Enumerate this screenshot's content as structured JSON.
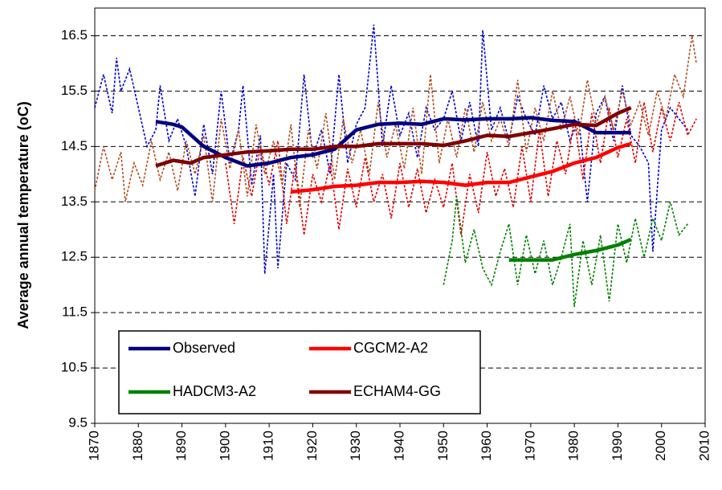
{
  "chart_data": {
    "type": "line",
    "y_label": "Average annual temperature (oC)",
    "xlim": [
      1870,
      2010
    ],
    "xticks": [
      1870,
      1880,
      1890,
      1900,
      1910,
      1920,
      1930,
      1940,
      1950,
      1960,
      1970,
      1980,
      1990,
      2000,
      2010
    ],
    "ylim": [
      9.5,
      17
    ],
    "yticks": [
      9.5,
      10.5,
      11.5,
      12.5,
      13.5,
      14.5,
      15.5,
      16.5
    ],
    "grid": true,
    "legend": "bottom-left",
    "series": [
      {
        "name": "Observed",
        "color": "#000080",
        "annual_color": "#0000cc",
        "x": [
          1884,
          1888,
          1890,
          1895,
          1900,
          1905,
          1910,
          1915,
          1920,
          1925,
          1930,
          1935,
          1940,
          1945,
          1950,
          1955,
          1960,
          1965,
          1970,
          1975,
          1980,
          1985,
          1990,
          1993
        ],
        "values": [
          14.95,
          14.9,
          14.85,
          14.5,
          14.3,
          14.15,
          14.2,
          14.3,
          14.35,
          14.45,
          14.8,
          14.9,
          14.92,
          14.9,
          15.0,
          14.98,
          15.0,
          15.0,
          15.02,
          14.97,
          14.95,
          14.75,
          14.75,
          14.75
        ],
        "annual_x": [
          1870,
          1872,
          1874,
          1875,
          1876,
          1878,
          1880,
          1882,
          1884,
          1885,
          1887,
          1889,
          1891,
          1893,
          1895,
          1897,
          1899,
          1901,
          1903,
          1904,
          1906,
          1908,
          1909,
          1911,
          1912,
          1914,
          1916,
          1918,
          1920,
          1922,
          1924,
          1926,
          1928,
          1930,
          1932,
          1934,
          1936,
          1938,
          1940,
          1942,
          1944,
          1946,
          1948,
          1950,
          1952,
          1954,
          1956,
          1958,
          1959,
          1961,
          1963,
          1965,
          1967,
          1969,
          1971,
          1973,
          1975,
          1977,
          1979,
          1981,
          1983,
          1985,
          1987,
          1989,
          1991,
          1993,
          1995,
          1997,
          1998,
          2000,
          2002,
          2004,
          2006
        ],
        "annual_values": [
          15.2,
          15.8,
          15.1,
          16.1,
          15.5,
          15.9,
          15.2,
          14.5,
          14.8,
          15.6,
          14.6,
          15.0,
          14.5,
          13.6,
          14.9,
          14.0,
          15.5,
          14.2,
          14.8,
          15.6,
          13.8,
          14.7,
          12.2,
          14.0,
          12.3,
          14.2,
          13.9,
          15.8,
          14.3,
          14.8,
          14.0,
          15.8,
          14.2,
          14.9,
          15.2,
          16.7,
          14.5,
          15.6,
          14.7,
          15.1,
          14.3,
          15.2,
          14.8,
          15.0,
          15.5,
          14.6,
          15.3,
          14.5,
          16.6,
          14.8,
          15.2,
          14.6,
          15.4,
          15.0,
          14.7,
          15.6,
          15.0,
          15.3,
          14.6,
          15.0,
          13.5,
          15.1,
          15.4,
          14.6,
          15.6,
          14.7,
          14.5,
          14.2,
          12.6,
          14.8,
          15.2,
          15.0,
          14.8
        ]
      },
      {
        "name": "CGCM2-A2",
        "color": "#ff0000",
        "annual_color": "#dd0000",
        "x": [
          1915,
          1920,
          1925,
          1930,
          1935,
          1940,
          1945,
          1950,
          1955,
          1960,
          1965,
          1970,
          1975,
          1980,
          1985,
          1990,
          1993
        ],
        "values": [
          13.68,
          13.72,
          13.78,
          13.8,
          13.85,
          13.85,
          13.87,
          13.85,
          13.8,
          13.85,
          13.85,
          13.95,
          14.05,
          14.2,
          14.3,
          14.48,
          14.55
        ],
        "annual_x": [
          1900,
          1902,
          1904,
          1906,
          1908,
          1910,
          1912,
          1914,
          1916,
          1918,
          1920,
          1922,
          1924,
          1926,
          1928,
          1930,
          1932,
          1934,
          1936,
          1938,
          1940,
          1942,
          1944,
          1946,
          1948,
          1950,
          1952,
          1954,
          1956,
          1958,
          1960,
          1962,
          1964,
          1966,
          1968,
          1970,
          1972,
          1974,
          1976,
          1978,
          1980,
          1982,
          1984,
          1986,
          1988,
          1990,
          1992,
          1994,
          1996,
          1998,
          2000,
          2002,
          2004,
          2006,
          2008
        ],
        "annual_values": [
          14.2,
          13.1,
          14.3,
          13.6,
          14.5,
          13.8,
          14.6,
          13.1,
          14.2,
          12.9,
          14.0,
          13.5,
          14.2,
          13.0,
          14.1,
          13.4,
          14.3,
          13.5,
          14.0,
          13.2,
          14.2,
          13.4,
          14.1,
          13.3,
          13.9,
          13.4,
          14.2,
          12.9,
          14.0,
          13.3,
          14.4,
          13.6,
          14.1,
          13.4,
          14.5,
          13.5,
          14.8,
          13.6,
          14.6,
          14.0,
          15.0,
          13.9,
          15.1,
          14.2,
          15.2,
          14.3,
          15.0,
          14.2,
          15.3,
          14.4,
          15.2,
          14.6,
          15.3,
          14.7,
          15.0
        ]
      },
      {
        "name": "HADCM3-A2",
        "color": "#008000",
        "annual_color": "#008000",
        "x": [
          1965,
          1970,
          1975,
          1980,
          1985,
          1990,
          1993
        ],
        "values": [
          12.45,
          12.45,
          12.45,
          12.55,
          12.62,
          12.72,
          12.82
        ],
        "annual_x": [
          1950,
          1952,
          1953,
          1955,
          1957,
          1959,
          1961,
          1963,
          1965,
          1967,
          1969,
          1971,
          1973,
          1975,
          1977,
          1979,
          1980,
          1982,
          1984,
          1986,
          1988,
          1990,
          1992,
          1994,
          1996,
          1998,
          2000,
          2002,
          2004,
          2006
        ],
        "annual_values": [
          12.0,
          12.8,
          13.6,
          12.4,
          13.0,
          12.3,
          12.0,
          12.6,
          13.1,
          12.0,
          12.9,
          12.2,
          12.8,
          12.0,
          12.5,
          13.1,
          11.6,
          12.8,
          12.0,
          12.9,
          11.7,
          13.1,
          12.4,
          13.2,
          12.5,
          13.2,
          12.8,
          13.5,
          12.9,
          13.1
        ]
      },
      {
        "name": "ECHAM4-GG",
        "color": "#800000",
        "annual_color": "#b05020",
        "x": [
          1884,
          1888,
          1892,
          1895,
          1900,
          1905,
          1910,
          1915,
          1920,
          1925,
          1930,
          1935,
          1940,
          1945,
          1950,
          1955,
          1960,
          1965,
          1970,
          1975,
          1980,
          1985,
          1990,
          1993
        ],
        "values": [
          14.15,
          14.25,
          14.2,
          14.3,
          14.35,
          14.4,
          14.42,
          14.45,
          14.45,
          14.5,
          14.5,
          14.55,
          14.55,
          14.55,
          14.52,
          14.6,
          14.7,
          14.68,
          14.75,
          14.82,
          14.9,
          14.88,
          15.1,
          15.2
        ],
        "annual_x": [
          1870,
          1872,
          1874,
          1876,
          1877,
          1879,
          1881,
          1883,
          1885,
          1887,
          1889,
          1891,
          1893,
          1895,
          1897,
          1899,
          1901,
          1903,
          1905,
          1907,
          1909,
          1911,
          1913,
          1915,
          1917,
          1919,
          1921,
          1923,
          1925,
          1927,
          1929,
          1931,
          1933,
          1935,
          1937,
          1939,
          1941,
          1943,
          1945,
          1947,
          1949,
          1951,
          1953,
          1955,
          1957,
          1959,
          1961,
          1963,
          1965,
          1967,
          1969,
          1971,
          1973,
          1975,
          1977,
          1979,
          1981,
          1983,
          1985,
          1987,
          1989,
          1991,
          1993,
          1995,
          1997,
          1999,
          2001,
          2003,
          2005,
          2007,
          2008
        ],
        "annual_values": [
          13.7,
          14.5,
          13.9,
          14.4,
          13.5,
          14.2,
          13.8,
          14.6,
          13.9,
          14.4,
          13.7,
          14.6,
          14.0,
          14.7,
          13.5,
          15.0,
          14.1,
          14.8,
          13.6,
          14.9,
          14.0,
          14.6,
          13.8,
          14.9,
          13.4,
          14.8,
          14.1,
          15.1,
          13.9,
          15.0,
          14.2,
          14.8,
          14.0,
          15.3,
          14.3,
          14.9,
          14.1,
          15.2,
          14.0,
          15.8,
          14.2,
          15.0,
          14.3,
          15.2,
          14.4,
          15.3,
          14.6,
          15.0,
          14.5,
          15.7,
          14.4,
          15.2,
          14.6,
          15.5,
          14.8,
          15.4,
          14.7,
          15.7,
          14.9,
          15.4,
          14.8,
          15.5,
          14.9,
          15.3,
          14.7,
          15.5,
          15.0,
          15.8,
          15.4,
          16.5,
          16.0
        ]
      }
    ]
  }
}
